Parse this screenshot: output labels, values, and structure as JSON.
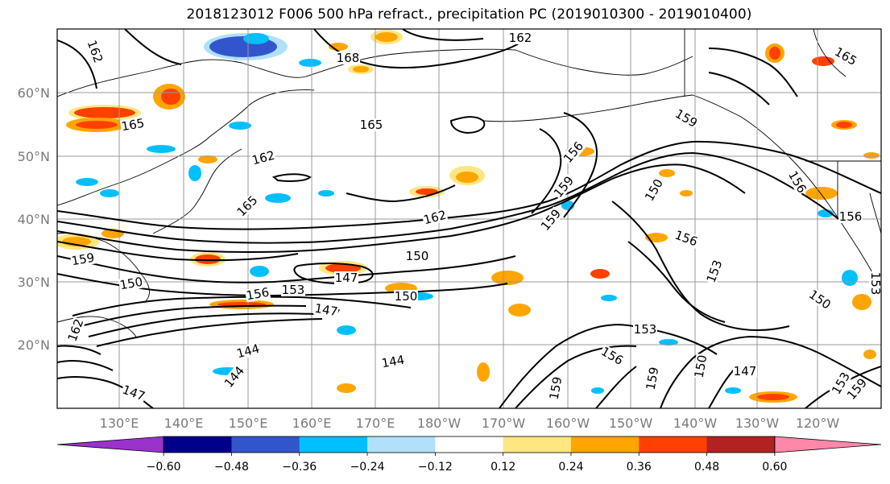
{
  "title": "2018123012 F006 500 hPa refract., precipitation PC (2019010300 - 2019010400)",
  "lat_labels": [
    "20°N",
    "30°N",
    "40°N",
    "50°N",
    "60°N"
  ],
  "lon_labels": [
    "130°E",
    "140°E",
    "150°E",
    "160°E",
    "170°E",
    "180°W",
    "170°W",
    "160°W",
    "150°W",
    "140°W",
    "130°W",
    "120°W"
  ],
  "colorbar": {
    "ticks": [
      "−0.60",
      "−0.48",
      "−0.36",
      "−0.24",
      "−0.12",
      "0.12",
      "0.24",
      "0.36",
      "0.48",
      "0.60"
    ],
    "colors": [
      "#9933cc",
      "#00008b",
      "#3355cc",
      "#00bfff",
      "#b0e0fa",
      "#ffffff",
      "#ffe680",
      "#ffa500",
      "#ff4000",
      "#b22222",
      "#ff88aa"
    ]
  },
  "contour_labels": [
    "162",
    "168",
    "162",
    "165",
    "165",
    "162",
    "165",
    "162",
    "159",
    "165",
    "156",
    "159",
    "150",
    "153",
    "147",
    "159",
    "150",
    "153",
    "156",
    "150",
    "147",
    "144",
    "144",
    "144",
    "147",
    "162",
    "159",
    "150",
    "153",
    "156",
    "159",
    "147",
    "153",
    "150",
    "156",
    "153",
    "159",
    "156",
    "150",
    "147",
    "156",
    "159"
  ]
}
